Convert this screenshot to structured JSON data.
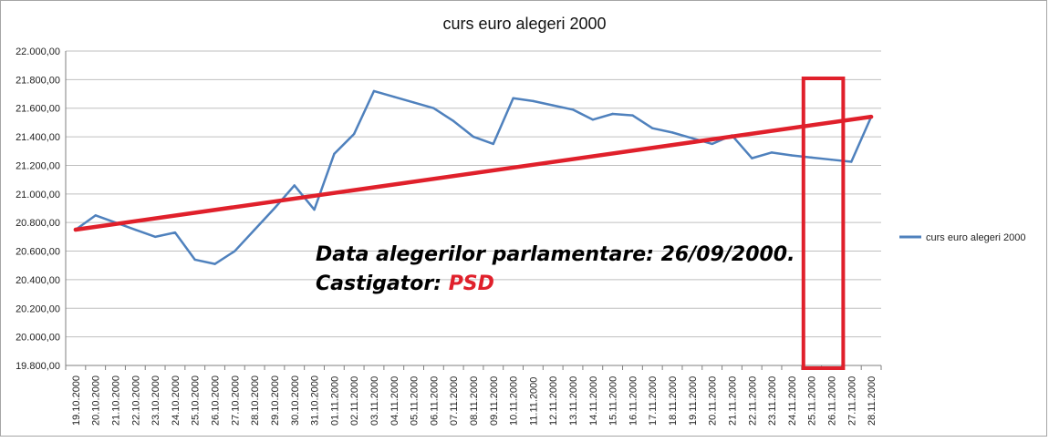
{
  "chart_data": {
    "type": "line",
    "title": "curs euro alegeri 2000",
    "xlabel": "",
    "ylabel": "",
    "ylim": [
      19800,
      22000
    ],
    "ytick_step": 200,
    "ytick_labels": [
      "19.800,00",
      "20.000,00",
      "20.200,00",
      "20.400,00",
      "20.600,00",
      "20.800,00",
      "21.000,00",
      "21.200,00",
      "21.400,00",
      "21.600,00",
      "21.800,00",
      "22.000,00"
    ],
    "grid": true,
    "legend_position": "right",
    "categories": [
      "19.10.2000",
      "20.10.2000",
      "21.10.2000",
      "22.10.2000",
      "23.10.2000",
      "24.10.2000",
      "25.10.2000",
      "26.10.2000",
      "27.10.2000",
      "28.10.2000",
      "29.10.2000",
      "30.10.2000",
      "31.10.2000",
      "01.11.2000",
      "02.11.2000",
      "03.11.2000",
      "04.11.2000",
      "05.11.2000",
      "06.11.2000",
      "07.11.2000",
      "08.11.2000",
      "09.11.2000",
      "10.11.2000",
      "11.11.2000",
      "12.11.2000",
      "13.11.2000",
      "14.11.2000",
      "15.11.2000",
      "16.11.2000",
      "17.11.2000",
      "18.11.2000",
      "19.11.2000",
      "20.11.2000",
      "21.11.2000",
      "22.11.2000",
      "23.11.2000",
      "24.11.2000",
      "25.11.2000",
      "26.11.2000",
      "27.11.2000",
      "28.11.2000"
    ],
    "series": [
      {
        "name": "curs euro alegeri 2000",
        "color": "#4f81bd",
        "values": [
          20750,
          20850,
          20800,
          20750,
          20700,
          20730,
          20540,
          20510,
          20600,
          20750,
          20900,
          21060,
          20890,
          21280,
          21420,
          21720,
          21680,
          21640,
          21600,
          21510,
          21400,
          21350,
          21670,
          21650,
          21620,
          21590,
          21520,
          21560,
          21550,
          21460,
          21430,
          21390,
          21350,
          21410,
          21250,
          21290,
          21270,
          21255,
          21240,
          21225,
          21540
        ]
      }
    ],
    "trendline": {
      "color": "#e0202b",
      "start": 20750,
      "end": 21540
    },
    "highlight_box": {
      "color": "#e0202b",
      "from_category": "25.11.2000",
      "to_category": "26.11.2000"
    },
    "annotation": {
      "line1": "Data alegerilor parlamentare: 26/09/2000.",
      "line2_prefix": "Castigator: ",
      "line2_highlight": "PSD",
      "highlight_color": "#e0202b"
    }
  }
}
